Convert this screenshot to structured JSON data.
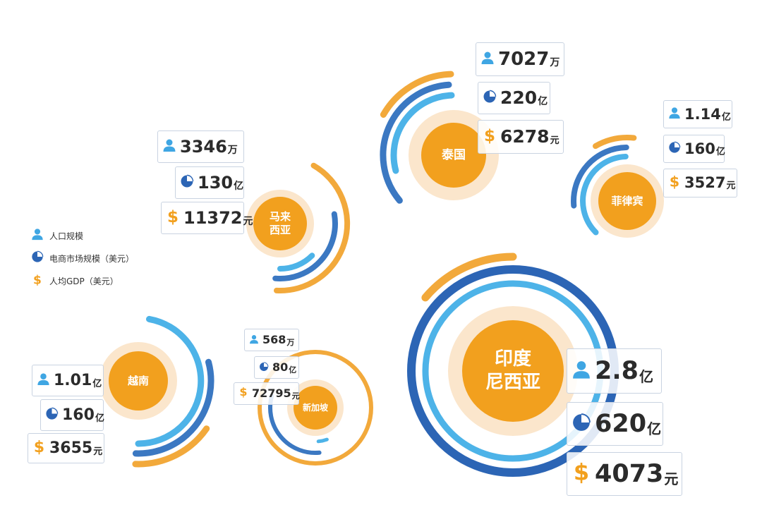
{
  "colors": {
    "core": "#f2a01e",
    "halo": "#fbe6cc",
    "population_ring": "#4db3e8",
    "ecommerce_ring": "#3b78c2",
    "gdp_ring": "#f2a93b",
    "indonesia_outer_ring": "#2c65b5"
  },
  "icons": {
    "population": "person-icon",
    "ecommerce": "pie-chart-icon",
    "gdp": "dollar-icon"
  },
  "legend": [
    {
      "icon": "person-icon",
      "label": "人口规模"
    },
    {
      "icon": "pie-chart-icon",
      "label": "电商市场规模（美元）"
    },
    {
      "icon": "dollar-icon",
      "label": "人均GDP（美元）"
    }
  ],
  "chart_data": {
    "type": "radial-bar",
    "series": [
      {
        "name": "人口规模"
      },
      {
        "name": "电商市场规模（美元）"
      },
      {
        "name": "人均GDP（美元）"
      }
    ],
    "countries": [
      {
        "id": "thailand",
        "name_lines": [
          "泰国"
        ],
        "population": {
          "value": "7027",
          "unit": "万"
        },
        "ecommerce": {
          "value": "220",
          "unit": "亿"
        },
        "gdp": {
          "value": "6278",
          "unit": "元"
        }
      },
      {
        "id": "philippines",
        "name_lines": [
          "菲律宾"
        ],
        "population": {
          "value": "1.14",
          "unit": "亿"
        },
        "ecommerce": {
          "value": "160",
          "unit": "亿"
        },
        "gdp": {
          "value": "3527",
          "unit": "元"
        }
      },
      {
        "id": "malaysia",
        "name_lines": [
          "马来",
          "西亚"
        ],
        "population": {
          "value": "3346",
          "unit": "万"
        },
        "ecommerce": {
          "value": "130",
          "unit": "亿"
        },
        "gdp": {
          "value": "11372",
          "unit": "元"
        }
      },
      {
        "id": "vietnam",
        "name_lines": [
          "越南"
        ],
        "population": {
          "value": "1.01",
          "unit": "亿"
        },
        "ecommerce": {
          "value": "160",
          "unit": "亿"
        },
        "gdp": {
          "value": "3655",
          "unit": "元"
        }
      },
      {
        "id": "singapore",
        "name_lines": [
          "新加坡"
        ],
        "population": {
          "value": "568",
          "unit": "万"
        },
        "ecommerce": {
          "value": "80",
          "unit": "亿"
        },
        "gdp": {
          "value": "72795",
          "unit": "元"
        }
      },
      {
        "id": "indonesia",
        "name_lines": [
          "印度",
          "尼西亚"
        ],
        "population": {
          "value": "2.8",
          "unit": "亿"
        },
        "ecommerce": {
          "value": "620",
          "unit": "亿"
        },
        "gdp": {
          "value": "4073",
          "unit": "元"
        }
      }
    ]
  }
}
